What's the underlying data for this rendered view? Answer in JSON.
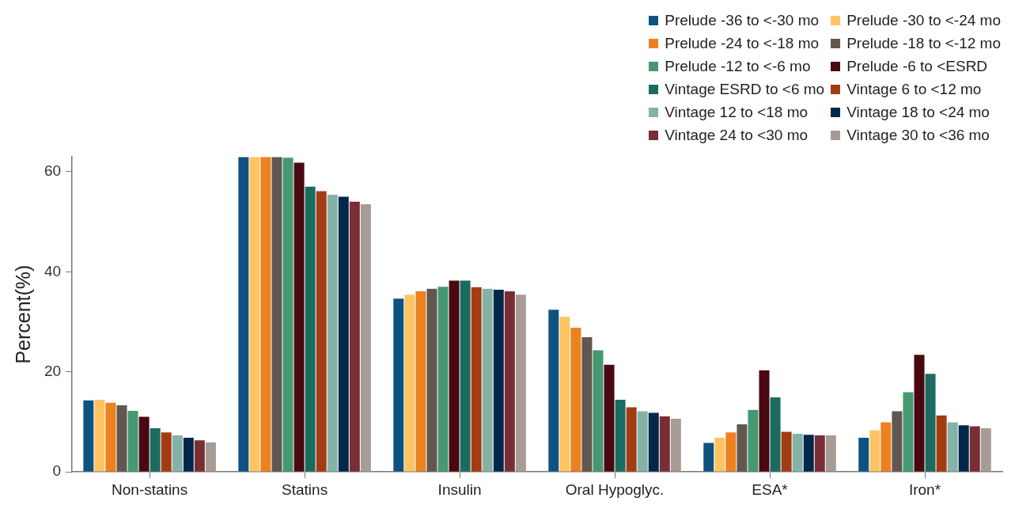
{
  "chart_data": {
    "type": "bar",
    "ylabel": "Percent(%)",
    "categories": [
      "Non-statins",
      "Statins",
      "Insulin",
      "Oral Hypoglyc.",
      "ESA*",
      "Iron*"
    ],
    "series": [
      {
        "name": "Prelude -36 to <-30 mo",
        "color": "#0e5380",
        "values": [
          14.4,
          63.0,
          34.7,
          32.5,
          5.9,
          6.9
        ]
      },
      {
        "name": "Prelude -30 to <-24 mo",
        "color": "#fec463",
        "values": [
          14.5,
          63.0,
          35.5,
          31.1,
          6.9,
          8.4
        ]
      },
      {
        "name": "Prelude -24 to <-18 mo",
        "color": "#ec8120",
        "values": [
          13.9,
          63.0,
          36.2,
          28.9,
          8.0,
          10.0
        ]
      },
      {
        "name": "Prelude -18 to <-12 mo",
        "color": "#62574f",
        "values": [
          13.4,
          63.0,
          36.7,
          27.0,
          9.6,
          12.2
        ]
      },
      {
        "name": "Prelude -12 to <-6 mo",
        "color": "#459871",
        "values": [
          12.3,
          62.9,
          37.1,
          24.4,
          12.5,
          16.0
        ]
      },
      {
        "name": "Prelude -6 to <ESRD",
        "color": "#4a0810",
        "values": [
          11.1,
          61.9,
          38.3,
          21.5,
          20.4,
          23.5
        ]
      },
      {
        "name": "Vintage ESRD to <6 mo",
        "color": "#1c6b60",
        "values": [
          8.8,
          57.1,
          38.3,
          14.5,
          15.0,
          19.7
        ]
      },
      {
        "name": "Vintage 6 to <12 mo",
        "color": "#a33c12",
        "values": [
          8.0,
          56.2,
          37.0,
          13.0,
          8.1,
          11.4
        ]
      },
      {
        "name": "Vintage 12 to <18 mo",
        "color": "#85b2a7",
        "values": [
          7.4,
          55.5,
          36.7,
          12.2,
          7.7,
          10.0
        ]
      },
      {
        "name": "Vintage 18 to <24 mo",
        "color": "#01274b",
        "values": [
          6.9,
          55.1,
          36.5,
          11.9,
          7.5,
          9.4
        ]
      },
      {
        "name": "Vintage 24 to <30 mo",
        "color": "#792e36",
        "values": [
          6.4,
          54.1,
          36.2,
          11.2,
          7.4,
          9.2
        ]
      },
      {
        "name": "Vintage 30 to <36 mo",
        "color": "#a69c95",
        "values": [
          6.0,
          53.6,
          35.5,
          10.7,
          7.4,
          8.8
        ]
      }
    ],
    "ylim": [
      0,
      63
    ],
    "yticks": [
      0,
      20,
      40,
      60
    ],
    "grid": false,
    "legend": "top right"
  }
}
